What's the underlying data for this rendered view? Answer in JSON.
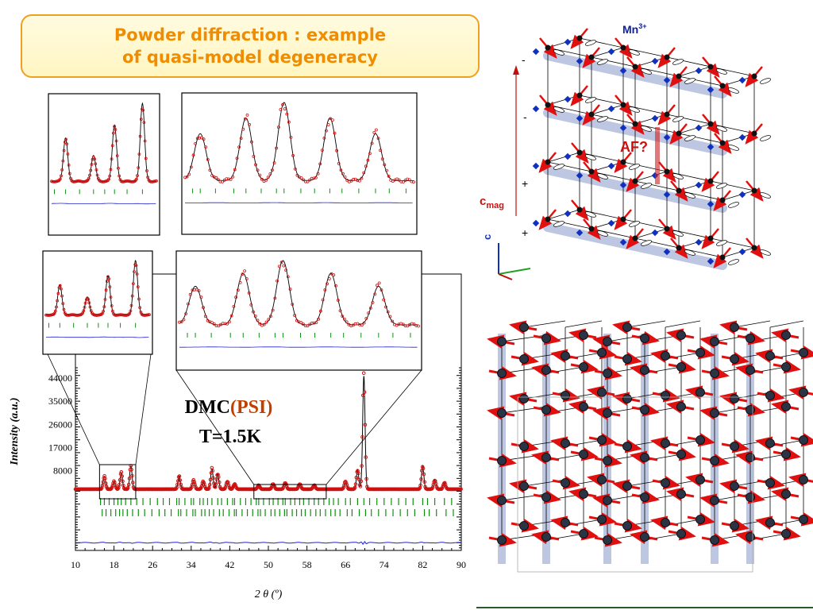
{
  "slide": {
    "title_line1": "Powder diffraction : example",
    "title_line2": "of quasi-model degeneracy",
    "label_dmc": "DMC",
    "label_psi": "(PSI)",
    "label_temp": "T=1.5K",
    "label_mn": "Mn",
    "label_mn_sup": "3+",
    "label_af": "AF?",
    "label_cmag": "c",
    "label_cmag_sub": "mag",
    "label_c_axis": "c",
    "signs": [
      "-",
      "-",
      "+",
      "+"
    ]
  },
  "colors": {
    "title": "#f08c00",
    "observed": "#d01010",
    "calculated": "#000000",
    "difference": "#2020cc",
    "bragg_ticks": "#109010",
    "psi": "#c04000",
    "spin": "#e01010",
    "mn_label": "#1020a0",
    "band": "#8899c8"
  },
  "chart_data": {
    "type": "line",
    "title": "",
    "xlabel": "2 θ (º)",
    "ylabel": "Intensity (a.u.)",
    "xlim": [
      10,
      90
    ],
    "ylim": [
      -23000,
      48000
    ],
    "xticks": [
      10,
      18,
      26,
      34,
      42,
      50,
      58,
      66,
      74,
      82,
      90
    ],
    "yticks": [
      8000,
      17000,
      26000,
      35000,
      44000
    ],
    "background": 800,
    "peaks": [
      [
        16.0,
        5000
      ],
      [
        18.0,
        3000
      ],
      [
        19.5,
        6500
      ],
      [
        21.5,
        9000
      ],
      [
        31.5,
        5000
      ],
      [
        34.5,
        3500
      ],
      [
        36.5,
        3000
      ],
      [
        38.3,
        8000
      ],
      [
        39.5,
        6000
      ],
      [
        41.5,
        3000
      ],
      [
        43.0,
        2000
      ],
      [
        48.0,
        1500
      ],
      [
        51.0,
        2000
      ],
      [
        53.5,
        2500
      ],
      [
        56.5,
        2000
      ],
      [
        59.5,
        1500
      ],
      [
        66.0,
        3000
      ],
      [
        68.5,
        7500
      ],
      [
        69.8,
        44000
      ],
      [
        82.0,
        9000
      ],
      [
        84.5,
        3500
      ],
      [
        86.5,
        2500
      ]
    ],
    "bragg_positions": [
      15.2,
      16,
      17,
      18,
      18.8,
      19.5,
      20.4,
      21.5,
      22.7,
      24,
      25.5,
      27,
      28.2,
      29.5,
      31,
      31.5,
      32.7,
      34,
      34.5,
      35.8,
      36.5,
      37.4,
      38.3,
      39.5,
      40.3,
      41.5,
      42.6,
      43,
      44.2,
      45.3,
      46.4,
      47.5,
      48,
      49,
      50.2,
      51,
      52,
      53,
      53.5,
      54.6,
      55.5,
      56.5,
      57.3,
      58.4,
      59.5,
      60.4,
      61.5,
      62.6,
      63.5,
      64.5,
      66,
      67,
      68.5,
      69.8,
      71,
      72.5,
      74,
      75.5,
      77,
      78.5,
      80,
      82,
      83,
      84.5,
      86.5,
      88
    ],
    "difference_offset": -20000,
    "difference_glitches": [
      [
        69.8,
        2500
      ]
    ],
    "zoom_windows": [
      [
        15,
        22.5
      ],
      [
        47,
        62
      ]
    ]
  }
}
